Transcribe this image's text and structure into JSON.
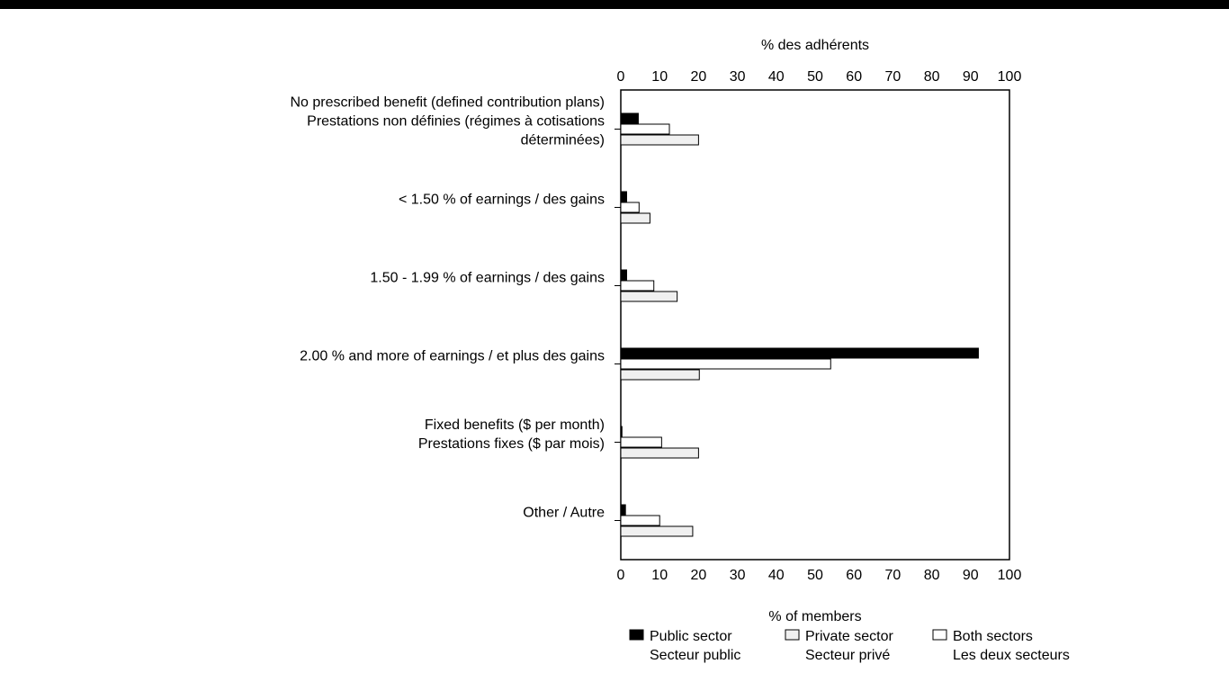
{
  "chart_data": {
    "type": "bar",
    "orientation": "horizontal",
    "title": "",
    "xlabel": "% of members",
    "xlabel_top": "% des adhérents",
    "xlim": [
      0,
      100
    ],
    "xticks": [
      0,
      10,
      20,
      30,
      40,
      50,
      60,
      70,
      80,
      90,
      100
    ],
    "grid": false,
    "legend_position": "bottom",
    "categories": [
      [
        "No prescribed benefit (defined contribution  plans)",
        "Prestations non définies (régimes à cotisations",
        "déterminées)"
      ],
      [
        "< 1.50 % of earnings / des gains"
      ],
      [
        "1.50 - 1.99 % of earnings / des gains"
      ],
      [
        "2.00 % and more of earnings / et plus des gains"
      ],
      [
        "Fixed benefits ($ per month)",
        "Prestations fixes ($ par mois)"
      ],
      [
        "Other / Autre"
      ]
    ],
    "series": [
      {
        "name": "Public sector",
        "name_fr": "Secteur public",
        "color": "#000000",
        "values": [
          4.5,
          1.5,
          1.5,
          92,
          0.3,
          1.2
        ]
      },
      {
        "name": "Both sectors",
        "name_fr": "Les deux secteurs",
        "color": "#ffffff",
        "values": [
          12.5,
          4.7,
          8.5,
          54,
          10.5,
          10
        ]
      },
      {
        "name": "Private sector",
        "name_fr": "Secteur privé",
        "color": "#f0f0f0",
        "values": [
          20,
          7.5,
          14.5,
          20.2,
          20,
          18.5
        ]
      }
    ],
    "legend": [
      {
        "series": 0,
        "label": "Public sector",
        "label_fr": "Secteur public"
      },
      {
        "series": 2,
        "label": "Private sector",
        "label_fr": "Secteur privé"
      },
      {
        "series": 1,
        "label": "Both sectors",
        "label_fr": "Les deux secteurs"
      }
    ]
  }
}
